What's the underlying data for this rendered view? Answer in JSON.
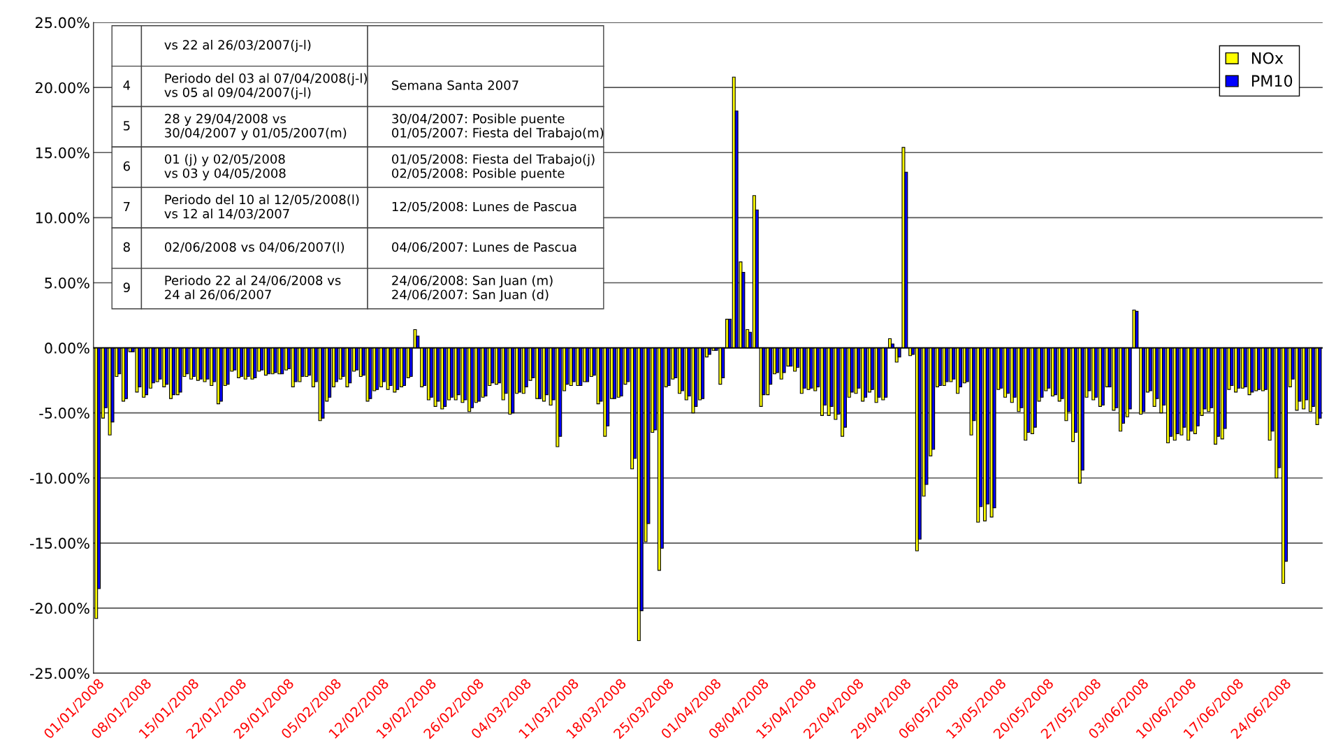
{
  "chart_data": {
    "type": "bar",
    "categories": [
      "01/01/2008",
      null,
      null,
      null,
      null,
      null,
      null,
      "08/01/2008",
      null,
      null,
      null,
      null,
      null,
      null,
      "15/01/2008",
      null,
      null,
      null,
      null,
      null,
      null,
      "22/01/2008",
      null,
      null,
      null,
      null,
      null,
      null,
      "29/01/2008",
      null,
      null,
      null,
      null,
      null,
      null,
      "05/02/2008",
      null,
      null,
      null,
      null,
      null,
      null,
      "12/02/2008",
      null,
      null,
      null,
      null,
      null,
      null,
      "19/02/2008",
      null,
      null,
      null,
      null,
      null,
      null,
      "26/02/2008",
      null,
      null,
      null,
      null,
      null,
      null,
      "04/03/2008",
      null,
      null,
      null,
      null,
      null,
      null,
      "11/03/2008",
      null,
      null,
      null,
      null,
      null,
      null,
      "18/03/2008",
      null,
      null,
      null,
      null,
      null,
      null,
      "25/03/2008",
      null,
      null,
      null,
      null,
      null,
      null,
      "01/04/2008",
      null,
      null,
      null,
      null,
      null,
      null,
      "08/04/2008",
      null,
      null,
      null,
      null,
      null,
      null,
      "15/04/2008",
      null,
      null,
      null,
      null,
      null,
      null,
      "22/04/2008",
      null,
      null,
      null,
      null,
      null,
      null,
      "29/04/2008",
      null,
      null,
      null,
      null,
      null,
      null,
      "06/05/2008",
      null,
      null,
      null,
      null,
      null,
      null,
      "13/05/2008",
      null,
      null,
      null,
      null,
      null,
      null,
      "20/05/2008",
      null,
      null,
      null,
      null,
      null,
      null,
      "27/05/2008",
      null,
      null,
      null,
      null,
      null,
      null,
      "03/06/2008",
      null,
      null,
      null,
      null,
      null,
      null,
      "10/06/2008",
      null,
      null,
      null,
      null,
      null,
      null,
      "17/06/2008",
      null,
      null,
      null,
      null,
      null,
      null,
      "24/06/2008",
      null,
      null,
      null,
      null,
      null
    ],
    "series": [
      {
        "name": "NOx",
        "color": "#ffff00",
        "values": [
          -20.8,
          -5.4,
          -6.7,
          -2.2,
          -4.1,
          -0.3,
          -3.4,
          -3.8,
          -3.1,
          -2.6,
          -3.0,
          -3.9,
          -3.6,
          -2.2,
          -2.4,
          -2.5,
          -2.6,
          -2.9,
          -4.3,
          -2.9,
          -1.8,
          -2.3,
          -2.4,
          -2.4,
          -1.8,
          -2.1,
          -2.0,
          -2.0,
          -1.7,
          -3.0,
          -2.6,
          -2.2,
          -3.0,
          -5.6,
          -4.1,
          -3.0,
          -2.4,
          -3.0,
          -1.8,
          -2.2,
          -4.1,
          -3.3,
          -3.0,
          -3.2,
          -3.4,
          -3.0,
          -2.3,
          1.4,
          -3.0,
          -4.0,
          -4.5,
          -4.7,
          -4.0,
          -4.0,
          -4.2,
          -4.9,
          -4.2,
          -3.8,
          -2.9,
          -2.8,
          -4.0,
          -5.1,
          -3.5,
          -3.5,
          -2.5,
          -3.9,
          -4.1,
          -4.4,
          -7.6,
          -3.3,
          -2.9,
          -2.9,
          -2.6,
          -2.2,
          -4.3,
          -6.8,
          -3.9,
          -3.8,
          -2.8,
          -9.3,
          -22.5,
          -14.9,
          -6.5,
          -17.1,
          -3.0,
          -2.4,
          -3.5,
          -4.0,
          -5.0,
          -4.0,
          -0.7,
          -0.2,
          -2.8,
          2.2,
          20.8,
          6.6,
          1.4,
          11.7,
          -4.5,
          -3.6,
          -2.0,
          -2.4,
          -1.4,
          -1.8,
          -3.5,
          -3.2,
          -3.3,
          -5.2,
          -5.2,
          -5.5,
          -6.8,
          -3.8,
          -3.5,
          -4.1,
          -3.4,
          -4.2,
          -4.0,
          0.7,
          -1.1,
          15.4,
          -0.6,
          -15.6,
          -11.4,
          -8.3,
          -3.0,
          -2.9,
          -2.6,
          -3.5,
          -2.7,
          -6.7,
          -13.4,
          -13.3,
          -13.0,
          -3.2,
          -3.8,
          -4.2,
          -4.9,
          -7.1,
          -6.6,
          -4.1,
          -3.3,
          -3.7,
          -4.1,
          -5.6,
          -7.2,
          -10.4,
          -3.8,
          -4.0,
          -4.5,
          -3.0,
          -4.8,
          -6.4,
          -5.3,
          2.9,
          -5.1,
          -3.4,
          -4.5,
          -5.0,
          -7.3,
          -7.1,
          -6.7,
          -7.1,
          -6.6,
          -5.2,
          -4.9,
          -7.4,
          -7.0,
          -3.2,
          -3.4,
          -3.1,
          -3.6,
          -3.3,
          -3.3,
          -7.1,
          -10.0,
          -18.1,
          -3.0,
          -4.8,
          -4.7,
          -4.9,
          -5.9
        ]
      },
      {
        "name": "PM10",
        "color": "#0000ff",
        "values": [
          -18.5,
          -4.6,
          -5.7,
          -2.0,
          -3.9,
          -0.3,
          -3.0,
          -3.6,
          -2.7,
          -2.4,
          -2.8,
          -3.6,
          -3.4,
          -2.0,
          -2.2,
          -2.4,
          -2.4,
          -2.6,
          -4.1,
          -2.8,
          -1.7,
          -2.2,
          -2.2,
          -2.3,
          -1.7,
          -2.0,
          -1.9,
          -2.0,
          -1.6,
          -2.6,
          -2.2,
          -2.1,
          -2.6,
          -5.4,
          -3.8,
          -2.6,
          -2.2,
          -2.7,
          -1.7,
          -2.1,
          -3.9,
          -3.2,
          -2.6,
          -2.9,
          -3.2,
          -2.9,
          -2.2,
          0.9,
          -2.9,
          -3.8,
          -4.1,
          -4.5,
          -3.8,
          -3.6,
          -4.0,
          -4.6,
          -4.1,
          -3.7,
          -2.7,
          -2.7,
          -3.5,
          -5.0,
          -3.4,
          -3.0,
          -2.3,
          -3.9,
          -3.6,
          -4.0,
          -6.8,
          -2.8,
          -2.6,
          -2.9,
          -2.6,
          -2.1,
          -4.1,
          -6.0,
          -3.9,
          -3.7,
          -2.6,
          -8.5,
          -20.2,
          -13.5,
          -6.3,
          -15.4,
          -2.9,
          -2.3,
          -3.3,
          -3.7,
          -4.5,
          -3.9,
          -0.5,
          -0.2,
          -2.3,
          2.2,
          18.2,
          5.8,
          1.2,
          10.6,
          -3.6,
          -2.8,
          -1.9,
          -1.9,
          -1.4,
          -1.5,
          -3.1,
          -3.1,
          -3.0,
          -4.4,
          -4.5,
          -5.1,
          -6.1,
          -3.4,
          -3.1,
          -3.8,
          -3.2,
          -3.8,
          -3.8,
          0.3,
          -0.7,
          13.5,
          -0.5,
          -14.7,
          -10.5,
          -7.8,
          -2.9,
          -2.6,
          -2.4,
          -3.0,
          -2.6,
          -5.6,
          -12.2,
          -12.0,
          -12.3,
          -3.1,
          -3.5,
          -3.8,
          -4.6,
          -6.5,
          -6.1,
          -3.8,
          -3.1,
          -3.6,
          -3.9,
          -4.9,
          -6.5,
          -9.4,
          -3.3,
          -3.8,
          -4.4,
          -3.0,
          -4.6,
          -5.8,
          -4.7,
          2.8,
          -4.9,
          -3.3,
          -3.9,
          -4.4,
          -6.8,
          -6.6,
          -6.1,
          -6.4,
          -6.0,
          -4.7,
          -4.6,
          -6.8,
          -6.2,
          -2.9,
          -3.1,
          -3.0,
          -3.4,
          -3.2,
          -3.2,
          -6.4,
          -9.2,
          -16.4,
          -2.4,
          -4.1,
          -4.0,
          -4.5,
          -5.4
        ]
      }
    ],
    "ylim": [
      -25,
      25
    ],
    "yticks": [
      {
        "value": -25,
        "label": "-25.00%"
      },
      {
        "value": -20,
        "label": "-20.00%"
      },
      {
        "value": -15,
        "label": "-15.00%"
      },
      {
        "value": -10,
        "label": "-10.00%"
      },
      {
        "value": -5,
        "label": "-5.00%"
      },
      {
        "value": 0,
        "label": "0.00%"
      },
      {
        "value": 5,
        "label": "5.00%"
      },
      {
        "value": 10,
        "label": "10.00%"
      },
      {
        "value": 15,
        "label": "15.00%"
      },
      {
        "value": 20,
        "label": "20.00%"
      },
      {
        "value": 25,
        "label": "25.00%"
      }
    ],
    "grid": "y",
    "legend": "top right",
    "annotations": [
      "vs 22 al 26/03/2007(j-l)",
      "4",
      "Periodo del 03 al 07/04/2008(j-l)\nvs 05 al 09/04/2007(j-l)",
      "Semana Santa 2007",
      "5",
      "28 y 29/04/2008 vs\n30/04/2007 y 01/05/2007(m)",
      "30/04/2007: Posible puente\n01/05/2007: Fiesta del Trabajo(m)",
      "6",
      "01 (j) y 02/05/2008\nvs 03 y 04/05/2008",
      "01/05/2008: Fiesta del Trabajo(j)\n02/05/2008: Posible puente",
      "7",
      "Periodo del 10 al 12/05/2008(l)\nvs 12 al 14/03/2007",
      "12/05/2008: Lunes de Pascua",
      "8",
      "02/06/2008 vs 04/06/2007(l)",
      "04/06/2007: Lunes de Pascua",
      "9",
      "Periodo 22 al 24/06/2008 vs\n24 al 26/06/2007",
      "24/06/2008: San Juan (m)\n24/06/2007: San Juan (d)"
    ]
  }
}
